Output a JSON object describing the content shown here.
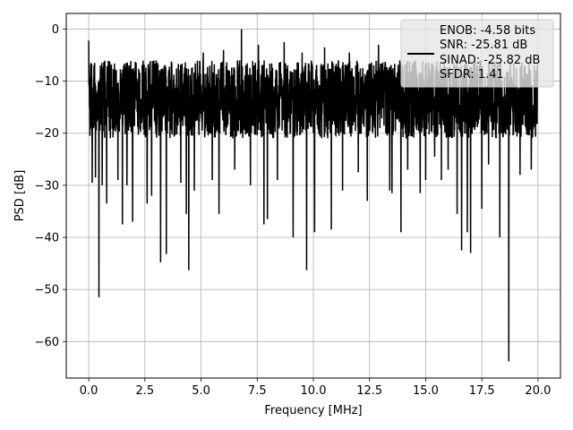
{
  "chart_data": {
    "type": "line",
    "title": "",
    "xlabel": "Frequency [MHz]",
    "ylabel": "PSD [dB]",
    "xlim": [
      -1.0,
      21.0
    ],
    "ylim": [
      -67.0,
      3.0
    ],
    "xticks": [
      0.0,
      2.5,
      5.0,
      7.5,
      10.0,
      12.5,
      15.0,
      17.5,
      20.0
    ],
    "xtick_labels": [
      "0.0",
      "2.5",
      "5.0",
      "7.5",
      "10.0",
      "12.5",
      "15.0",
      "17.5",
      "20.0"
    ],
    "yticks": [
      0,
      -10,
      -20,
      -30,
      -40,
      -50,
      -60
    ],
    "ytick_labels": [
      "0",
      "−10",
      "−20",
      "−30",
      "−40",
      "−50",
      "−60"
    ],
    "grid": true,
    "legend_position": "top-right",
    "series": [
      {
        "color": "#000000",
        "x_range": [
          0.0,
          20.0
        ],
        "band": [
          -21,
          -6
        ],
        "peaks": [
          {
            "x": 0.0,
            "y": -2.2
          },
          {
            "x": 0.05,
            "y": -20.5
          },
          {
            "x": 0.1,
            "y": -6.5
          },
          {
            "x": 0.15,
            "y": -29.5
          },
          {
            "x": 0.3,
            "y": -28.5
          },
          {
            "x": 0.45,
            "y": -51.5
          },
          {
            "x": 0.6,
            "y": -30.0
          },
          {
            "x": 0.8,
            "y": -33.5
          },
          {
            "x": 1.0,
            "y": -9.0
          },
          {
            "x": 1.3,
            "y": -29.0
          },
          {
            "x": 1.5,
            "y": -37.5
          },
          {
            "x": 1.7,
            "y": -30.0
          },
          {
            "x": 1.95,
            "y": -37.0
          },
          {
            "x": 2.1,
            "y": -7.5
          },
          {
            "x": 2.6,
            "y": -33.5
          },
          {
            "x": 2.8,
            "y": -32.0
          },
          {
            "x": 3.0,
            "y": -6.0
          },
          {
            "x": 3.2,
            "y": -44.8
          },
          {
            "x": 3.45,
            "y": -43.2
          },
          {
            "x": 3.7,
            "y": -6.5
          },
          {
            "x": 4.1,
            "y": -29.5
          },
          {
            "x": 4.35,
            "y": -35.5
          },
          {
            "x": 4.45,
            "y": -46.3
          },
          {
            "x": 4.7,
            "y": -31.0
          },
          {
            "x": 5.1,
            "y": -4.5
          },
          {
            "x": 5.5,
            "y": -29.0
          },
          {
            "x": 5.8,
            "y": -35.5
          },
          {
            "x": 6.0,
            "y": -4.0
          },
          {
            "x": 6.5,
            "y": -27.0
          },
          {
            "x": 6.8,
            "y": 0.0
          },
          {
            "x": 7.2,
            "y": -30.0
          },
          {
            "x": 7.55,
            "y": -3.0
          },
          {
            "x": 7.8,
            "y": -37.5
          },
          {
            "x": 7.95,
            "y": -36.5
          },
          {
            "x": 8.4,
            "y": -29.0
          },
          {
            "x": 8.7,
            "y": -2.5
          },
          {
            "x": 9.1,
            "y": -40.0
          },
          {
            "x": 9.5,
            "y": -4.5
          },
          {
            "x": 9.7,
            "y": -46.3
          },
          {
            "x": 10.05,
            "y": -39.0
          },
          {
            "x": 10.5,
            "y": -3.5
          },
          {
            "x": 10.8,
            "y": -38.5
          },
          {
            "x": 11.3,
            "y": -31.0
          },
          {
            "x": 11.6,
            "y": -4.5
          },
          {
            "x": 12.0,
            "y": -27.5
          },
          {
            "x": 12.4,
            "y": -33.0
          },
          {
            "x": 12.9,
            "y": -3.0
          },
          {
            "x": 13.4,
            "y": -31.0
          },
          {
            "x": 13.5,
            "y": -31.5
          },
          {
            "x": 13.9,
            "y": -39.0
          },
          {
            "x": 14.2,
            "y": -27.0
          },
          {
            "x": 14.75,
            "y": -31.5
          },
          {
            "x": 15.0,
            "y": -29.0
          },
          {
            "x": 15.4,
            "y": -24.5
          },
          {
            "x": 15.7,
            "y": -29.0
          },
          {
            "x": 16.0,
            "y": -27.0
          },
          {
            "x": 16.4,
            "y": -35.5
          },
          {
            "x": 16.6,
            "y": -42.5
          },
          {
            "x": 16.85,
            "y": -39.0
          },
          {
            "x": 17.0,
            "y": -43.0
          },
          {
            "x": 17.5,
            "y": -34.5
          },
          {
            "x": 17.8,
            "y": -26.0
          },
          {
            "x": 18.3,
            "y": -40.0
          },
          {
            "x": 18.7,
            "y": -63.8
          },
          {
            "x": 19.2,
            "y": -28.0
          },
          {
            "x": 19.7,
            "y": -27.0
          },
          {
            "x": 20.0,
            "y": -9.0
          }
        ]
      }
    ],
    "legend": {
      "lines": [
        "ENOB: -4.58 bits",
        "SNR: -25.81 dB",
        "SINAD: -25.82 dB",
        "SFDR: 1.41"
      ]
    }
  }
}
